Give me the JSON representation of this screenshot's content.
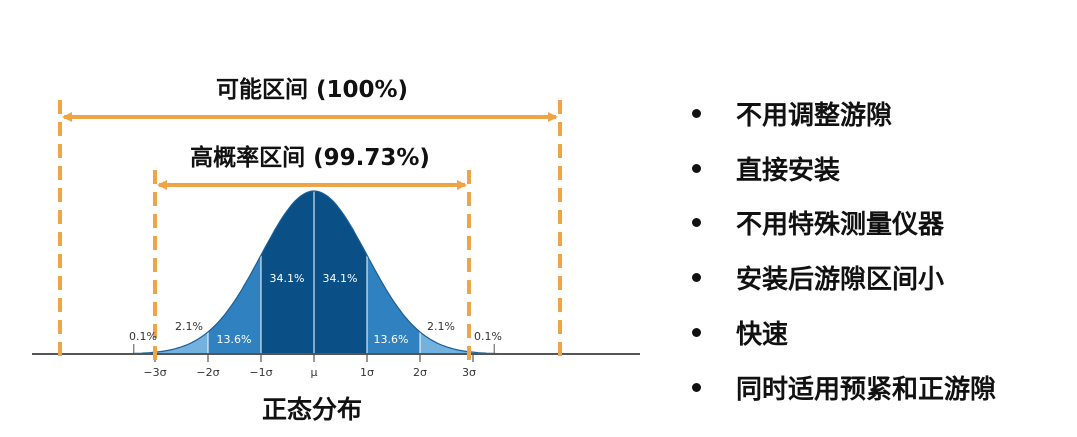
{
  "ranges": {
    "possible": "可能区间 (100%)",
    "high_prob": "高概率区间 (99.73%)"
  },
  "distribution": {
    "caption": "正态分布",
    "axis_ticks": [
      "−3σ",
      "−2σ",
      "−1σ",
      "μ",
      "1σ",
      "2σ",
      "3σ"
    ],
    "segments": [
      {
        "label": "0.1%",
        "value": 0.1
      },
      {
        "label": "2.1%",
        "value": 2.1
      },
      {
        "label": "13.6%",
        "value": 13.6
      },
      {
        "label": "34.1%",
        "value": 34.1
      },
      {
        "label": "34.1%",
        "value": 34.1
      },
      {
        "label": "13.6%",
        "value": 13.6
      },
      {
        "label": "2.1%",
        "value": 2.1
      },
      {
        "label": "0.1%",
        "value": 0.1
      }
    ]
  },
  "features": [
    {
      "text": "不用调整游隙"
    },
    {
      "text": "直接安装"
    },
    {
      "text": "不用特殊测量仪器"
    },
    {
      "text": "安装后游隙区间小"
    },
    {
      "text": "快速"
    },
    {
      "text": "同时适用预紧和正游隙"
    }
  ],
  "colors": {
    "orange": "#EFA445",
    "dark_blue": "#0A4F86",
    "mid_blue": "#2F82BF",
    "light_blue": "#74B1DE",
    "pale_blue": "#B8D6EE"
  }
}
